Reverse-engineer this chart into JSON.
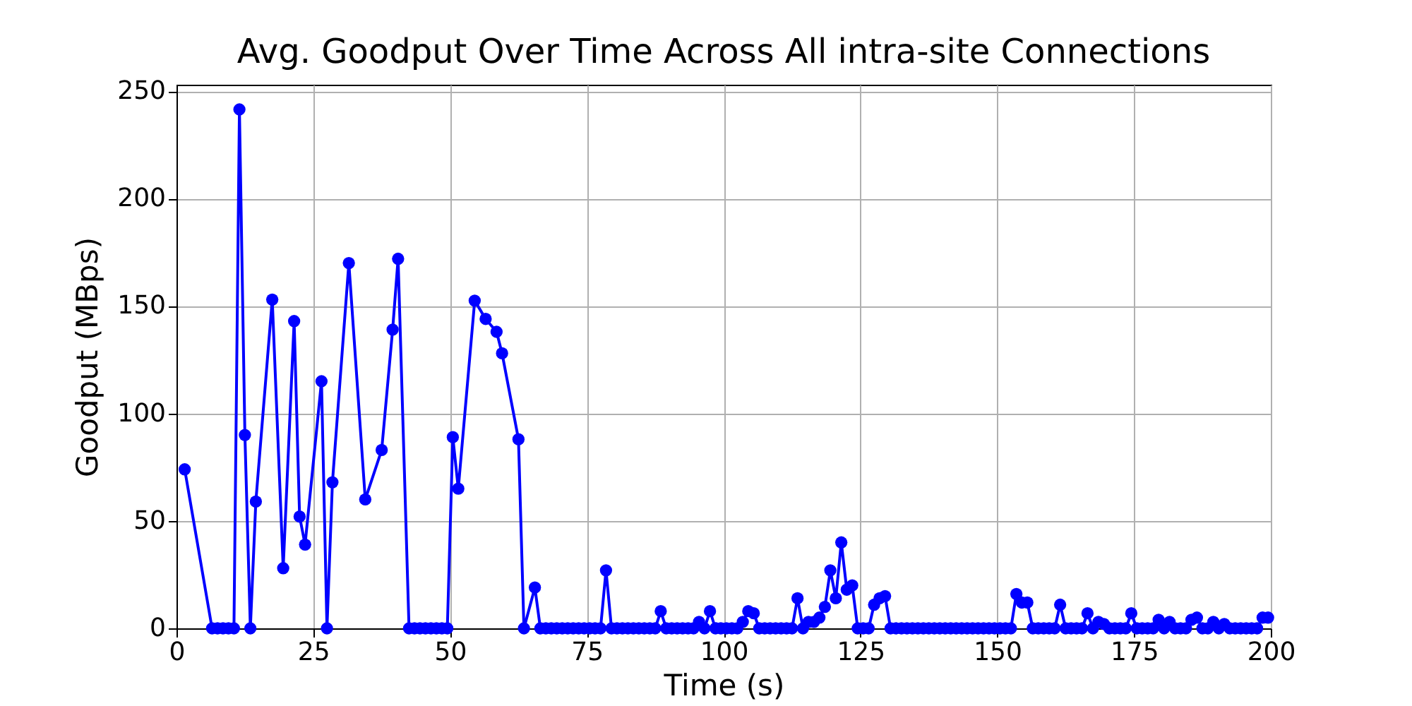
{
  "chart_data": {
    "type": "line",
    "title": "Avg. Goodput Over Time Across All intra-site Connections",
    "xlabel": "Time (s)",
    "ylabel": "Goodput (MBps)",
    "series": [
      {
        "color": "#0000ff",
        "x": [
          1.5,
          6.5,
          7.5,
          8.5,
          9.5,
          10.5,
          11.5,
          12.5,
          13.5,
          14.5,
          17.5,
          19.5,
          21.5,
          22.5,
          23.5,
          26.5,
          27.5,
          28.5,
          31.5,
          34.5,
          37.5,
          39.5,
          40.5,
          42.5,
          43.5,
          44.5,
          45.5,
          46.5,
          47.5,
          48.5,
          49.5,
          50.5,
          51.5,
          54.5,
          56.5,
          58.5,
          59.5,
          62.5,
          63.5,
          65.5,
          66.5,
          67.5,
          68.5,
          69.5,
          70.5,
          71.5,
          72.5,
          73.5,
          74.5,
          75.5,
          76.5,
          77.5,
          78.5,
          79.5,
          80.5,
          81.5,
          82.5,
          83.5,
          84.5,
          85.5,
          86.5,
          87.5,
          88.5,
          89.5,
          90.5,
          91.5,
          92.5,
          93.5,
          94.5,
          95.5,
          96.5,
          97.5,
          98.5,
          99.5,
          100.5,
          101.5,
          102.5,
          103.5,
          104.5,
          105.5,
          106.5,
          107.5,
          108.5,
          109.5,
          110.5,
          111.5,
          112.5,
          113.5,
          114.5,
          115.5,
          116.5,
          117.5,
          118.5,
          119.5,
          120.5,
          121.5,
          122.5,
          123.5,
          124.5,
          125.5,
          126.5,
          127.5,
          128.5,
          129.5,
          130.5,
          131.5,
          132.5,
          133.5,
          134.5,
          135.5,
          136.5,
          137.5,
          138.5,
          139.5,
          140.5,
          141.5,
          142.5,
          143.5,
          144.5,
          145.5,
          146.5,
          147.5,
          148.5,
          149.5,
          150.5,
          151.5,
          152.5,
          153.5,
          154.5,
          155.5,
          156.5,
          157.5,
          158.5,
          159.5,
          160.5,
          161.5,
          162.5,
          163.5,
          164.5,
          165.5,
          166.5,
          167.5,
          168.5,
          169.5,
          170.5,
          171.5,
          172.5,
          173.5,
          174.5,
          175.5,
          176.5,
          177.5,
          178.5,
          179.5,
          180.5,
          181.5,
          182.5,
          183.5,
          184.5,
          185.5,
          186.5,
          187.5,
          188.5,
          189.5,
          190.5,
          191.5,
          192.5,
          193.5,
          194.5,
          195.5,
          196.5,
          197.5,
          198.5,
          199.5
        ],
        "values": [
          74,
          0,
          0,
          0,
          0,
          0,
          241.5,
          90,
          0,
          59,
          153,
          28,
          143,
          52,
          39,
          115,
          0,
          68,
          170,
          60,
          83,
          139,
          172,
          0,
          0,
          0,
          0,
          0,
          0,
          0,
          0,
          89,
          65,
          152.5,
          144,
          138,
          128,
          88,
          0,
          19,
          0,
          0,
          0,
          0,
          0,
          0,
          0,
          0,
          0,
          0,
          0,
          0,
          27,
          0,
          0,
          0,
          0,
          0,
          0,
          0,
          0,
          0,
          8,
          0,
          0,
          0,
          0,
          0,
          0,
          3,
          0,
          8,
          0,
          0,
          0,
          0,
          0,
          3,
          8,
          7,
          0,
          0,
          0,
          0,
          0,
          0,
          0,
          14,
          0,
          3,
          3,
          5,
          10,
          27,
          14,
          40,
          18,
          20,
          0,
          0,
          0,
          11,
          14,
          15,
          0,
          0,
          0,
          0,
          0,
          0,
          0,
          0,
          0,
          0,
          0,
          0,
          0,
          0,
          0,
          0,
          0,
          0,
          0,
          0,
          0,
          0,
          0,
          16,
          12,
          12,
          0,
          0,
          0,
          0,
          0,
          11,
          0,
          0,
          0,
          0,
          7,
          0,
          3,
          2,
          0,
          0,
          0,
          0,
          7,
          0,
          0,
          0,
          0,
          4,
          0,
          3,
          0,
          0,
          0,
          4,
          5,
          0,
          0,
          3,
          0,
          2,
          0,
          0,
          0,
          0,
          0,
          0,
          5,
          5
        ]
      }
    ],
    "xlim": [
      0,
      200
    ],
    "xticks": [
      0,
      25,
      50,
      75,
      100,
      125,
      150,
      175,
      200
    ],
    "ylim": [
      0,
      253
    ],
    "yticks": [
      0,
      50,
      100,
      150,
      200,
      250
    ],
    "grid": true,
    "marker": "circle",
    "line_style": "solid"
  }
}
